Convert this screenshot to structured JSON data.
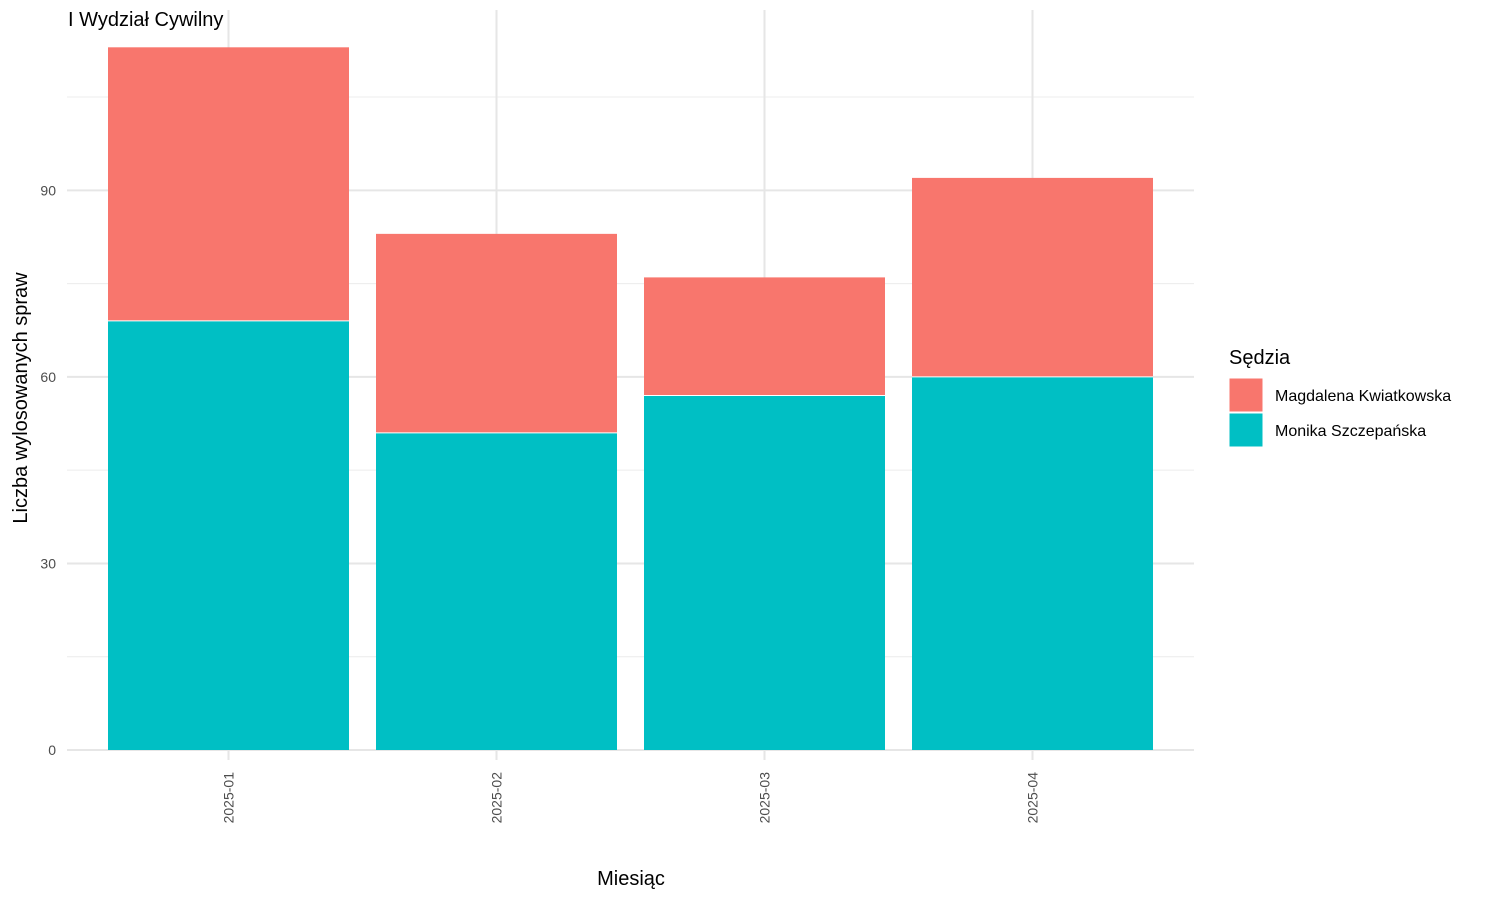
{
  "chart_data": {
    "type": "bar",
    "stacked": true,
    "title": "I Wydział Cywilny",
    "xlabel": "Miesiąc",
    "ylabel": "Liczba wylosowanych spraw",
    "categories": [
      "2025-01",
      "2025-02",
      "2025-03",
      "2025-04"
    ],
    "series": [
      {
        "name": "Monika Szczepańska",
        "color": "#00BFC4",
        "values": [
          69,
          51,
          57,
          60
        ]
      },
      {
        "name": "Magdalena Kwiatkowska",
        "color": "#F8766D",
        "values": [
          44,
          32,
          19,
          32
        ]
      }
    ],
    "ylim": [
      0,
      119
    ],
    "yticks": [
      0,
      30,
      60,
      90
    ],
    "grid": true,
    "legend": {
      "title": "Sędzia",
      "position": "right",
      "entries": [
        {
          "label": "Magdalena Kwiatkowska",
          "color": "#F8766D"
        },
        {
          "label": "Monika Szczepańska",
          "color": "#00BFC4"
        }
      ]
    }
  }
}
